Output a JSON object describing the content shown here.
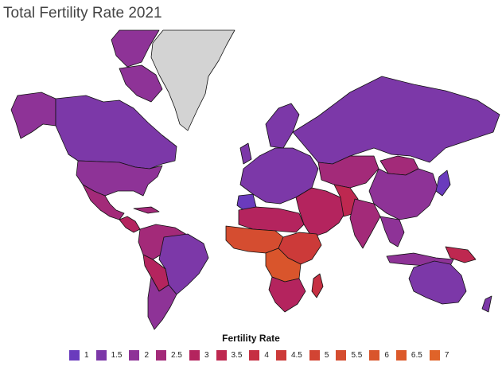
{
  "title": "Total Fertility Rate 2021",
  "legend": {
    "title": "Fertility Rate",
    "items": [
      {
        "label": "1",
        "color": "#6a3bbd"
      },
      {
        "label": "1.5",
        "color": "#7c38a8"
      },
      {
        "label": "2",
        "color": "#8e3397"
      },
      {
        "label": "2.5",
        "color": "#a32a79"
      },
      {
        "label": "3",
        "color": "#b4245e"
      },
      {
        "label": "3.5",
        "color": "#be2850"
      },
      {
        "label": "4",
        "color": "#c63042"
      },
      {
        "label": "4.5",
        "color": "#cc3a39"
      },
      {
        "label": "5",
        "color": "#d24433"
      },
      {
        "label": "5.5",
        "color": "#d54d30"
      },
      {
        "label": "6",
        "color": "#d9552c"
      },
      {
        "label": "6.5",
        "color": "#dc5a2b"
      },
      {
        "label": "7",
        "color": "#e06329"
      }
    ]
  },
  "no_data_color": "#d3d3d3"
}
